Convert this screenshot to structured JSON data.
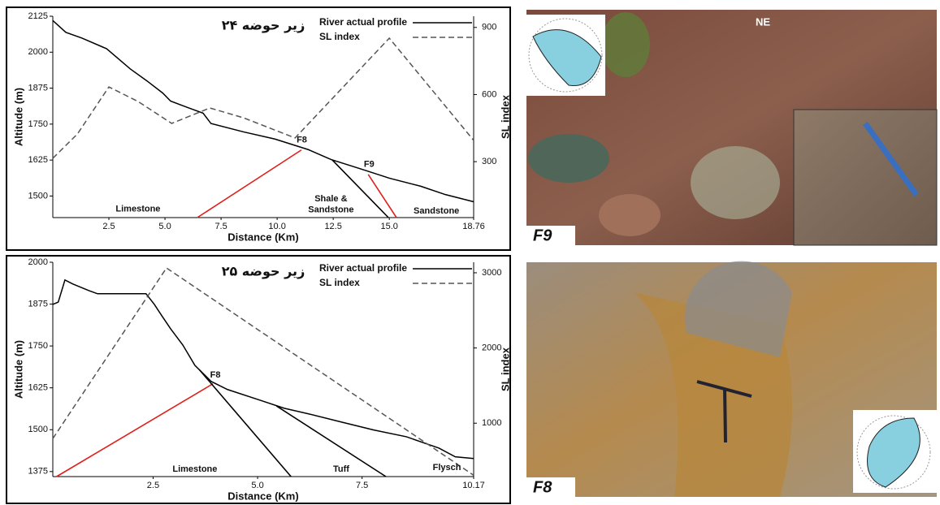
{
  "chart_data": [
    {
      "type": "line",
      "title": "زیر حوضه ۲۴",
      "xlabel": "Distance (Km)",
      "ylabel": "Altitude (m)",
      "y2label": "SL index",
      "xlim": [
        0,
        18.76
      ],
      "ylim": [
        1425,
        2125
      ],
      "y2lim": [
        50,
        950
      ],
      "xticks": [
        2.5,
        {
          "value": 5,
          "label": "5.0"
        },
        7.5,
        {
          "value": 10,
          "label": "10.0"
        },
        12.5,
        {
          "value": 15,
          "label": "15.0"
        },
        18.76
      ],
      "yticks": [
        1500,
        1625,
        1750,
        1875,
        2000,
        2125
      ],
      "y2ticks": [
        300,
        600,
        900
      ],
      "legend": "upper right",
      "series": [
        {
          "name": "River actual profile",
          "color": "#000000",
          "linestyle": "solid",
          "x": [
            0,
            0.58,
            1.3,
            2.4,
            3.45,
            4.2,
            4.9,
            5.25,
            6.0,
            6.7,
            7.05,
            8.5,
            9.9,
            11.4,
            12.4,
            13.9,
            15.0,
            16.4,
            17.5,
            18.76
          ],
          "values": [
            2110,
            2069,
            2049,
            2012,
            1942,
            1900,
            1858,
            1830,
            1808,
            1788,
            1752,
            1723,
            1698,
            1661,
            1627,
            1590,
            1562,
            1534,
            1505,
            1480
          ]
        },
        {
          "name": "SL index",
          "color": "#555555",
          "linestyle": "dashed",
          "axis": "y2",
          "x": [
            0,
            1.1,
            2.5,
            3.8,
            5.3,
            7.0,
            8.5,
            10.8,
            15.0,
            18.76
          ],
          "values": [
            315,
            424,
            634,
            569,
            471,
            540,
            496,
            406,
            852,
            395
          ]
        }
      ],
      "lines": [
        {
          "color": "#e0201a",
          "x": [
            6.44,
            11.08
          ],
          "y": [
            1425,
            1660
          ]
        },
        {
          "color": "#e0201a",
          "x": [
            14.06,
            15.32
          ],
          "y": [
            1575,
            1425
          ]
        },
        {
          "color": "#000000",
          "x": [
            12.45,
            14.96
          ],
          "y": [
            1626,
            1425
          ]
        }
      ],
      "annotations": [
        {
          "text": "F8",
          "x": 11.1,
          "y": 1694
        },
        {
          "text": "F9",
          "x": 14.1,
          "y": 1609
        },
        {
          "text": "Limestone",
          "x": 3.8,
          "y": 1454
        },
        {
          "text": "Shale &",
          "x": 12.4,
          "y": 1490
        },
        {
          "text": "Sandstone",
          "x": 12.4,
          "y": 1451
        },
        {
          "text": "Sandstone",
          "x": 17.1,
          "y": 1448
        }
      ]
    },
    {
      "type": "line",
      "title": "زیر حوضه ۲۵",
      "xlabel": "Distance (Km)",
      "ylabel": "Altitude (m)",
      "y2label": "SL index",
      "xlim": [
        0.1,
        10.17
      ],
      "ylim": [
        1360,
        2000
      ],
      "y2lim": [
        290,
        3140
      ],
      "xticks": [
        2.5,
        {
          "value": 5,
          "label": "5.0"
        },
        7.5,
        10.17
      ],
      "yticks": [
        1375,
        1500,
        1625,
        1750,
        1875,
        2000
      ],
      "y2ticks": [
        1000,
        2000,
        3000
      ],
      "legend": "upper right",
      "series": [
        {
          "name": "River actual profile",
          "color": "#000000",
          "linestyle": "solid",
          "x": [
            0.1,
            0.23,
            0.39,
            0.58,
            0.97,
            1.17,
            2.33,
            2.53,
            2.72,
            2.92,
            3.21,
            3.5,
            3.89,
            4.28,
            5.06,
            5.64,
            6.23,
            7.0,
            7.78,
            8.56,
            9.34,
            9.73,
            10.17
          ],
          "values": [
            1874,
            1881,
            1947,
            1935,
            1915,
            1906,
            1906,
            1874,
            1838,
            1801,
            1753,
            1692,
            1644,
            1620,
            1588,
            1564,
            1547,
            1523,
            1499,
            1479,
            1445,
            1419,
            1414
          ]
        },
        {
          "name": "SL index",
          "color": "#555555",
          "linestyle": "dashed",
          "axis": "y2",
          "x": [
            0.1,
            2.82,
            10.17
          ],
          "values": [
            795,
            3064,
            308
          ]
        }
      ],
      "lines": [
        {
          "color": "#e0201a",
          "x": [
            0.19,
            3.93
          ],
          "y": [
            1360,
            1637
          ]
        },
        {
          "color": "#000000",
          "x": [
            3.6,
            5.8
          ],
          "y": [
            1680,
            1360
          ]
        },
        {
          "color": "#000000",
          "x": [
            5.45,
            8.07
          ],
          "y": [
            1571,
            1360
          ]
        }
      ],
      "annotations": [
        {
          "text": "F8",
          "x": 3.99,
          "y": 1663
        },
        {
          "text": "Limestone",
          "x": 3.5,
          "y": 1382
        },
        {
          "text": "Tuff",
          "x": 7.0,
          "y": 1382
        },
        {
          "text": "Flysch",
          "x": 9.53,
          "y": 1387
        }
      ]
    }
  ],
  "photos": [
    {
      "label": "F9",
      "direction": "NE"
    },
    {
      "label": "F8"
    }
  ]
}
